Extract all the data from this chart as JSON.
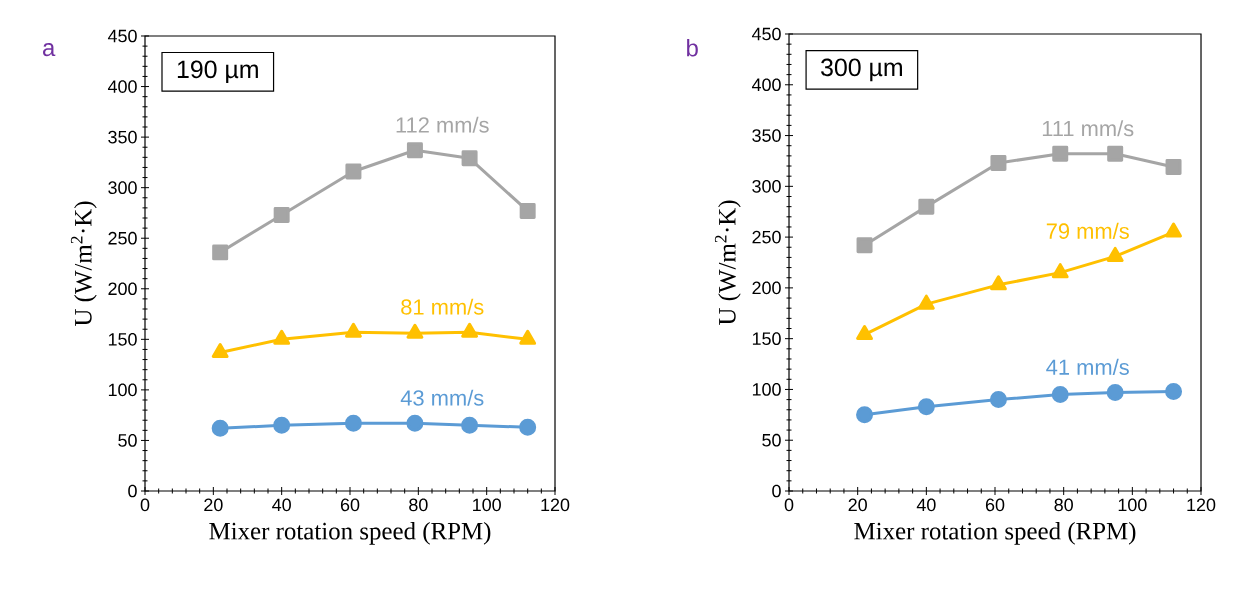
{
  "chart_data": [
    {
      "type": "line",
      "xlabel": "Mixer rotation speed (RPM)",
      "ylabel": "U  (W/m$^{2}$·K)",
      "annotations": [
        "a",
        "190 µm"
      ],
      "x": [
        22,
        40,
        61,
        79,
        95,
        112
      ],
      "xlim": [
        0,
        120
      ],
      "xticks": [
        0,
        20,
        40,
        60,
        80,
        100,
        120
      ],
      "ylim": [
        0,
        450
      ],
      "yticks": [
        0,
        50,
        100,
        150,
        200,
        250,
        300,
        350,
        400,
        450
      ],
      "grid": false,
      "line_style": "solid",
      "series": [
        {
          "name": "112 mm/s",
          "color": "#a5a5a5",
          "marker": "square",
          "values": [
            236,
            273,
            316,
            337,
            329,
            277
          ]
        },
        {
          "name": "81 mm/s",
          "color": "#ffc000",
          "marker": "triangle",
          "values": [
            137,
            150,
            157,
            156,
            157,
            150
          ]
        },
        {
          "name": "43 mm/s",
          "color": "#5b9bd5",
          "marker": "circle",
          "values": [
            62,
            65,
            67,
            67,
            65,
            63
          ]
        }
      ]
    },
    {
      "type": "line",
      "xlabel": "Mixer rotation speed (RPM)",
      "ylabel": "U  (W/m$^{2}$·K)",
      "annotations": [
        "b",
        "300 µm"
      ],
      "x": [
        22,
        40,
        61,
        79,
        95,
        112
      ],
      "xlim": [
        0,
        120
      ],
      "xticks": [
        0,
        20,
        40,
        60,
        80,
        100,
        120
      ],
      "ylim": [
        0,
        450
      ],
      "yticks": [
        0,
        50,
        100,
        150,
        200,
        250,
        300,
        350,
        400,
        450
      ],
      "grid": false,
      "line_style": "solid",
      "series": [
        {
          "name": "111 mm/s",
          "color": "#a5a5a5",
          "marker": "square",
          "values": [
            242,
            280,
            323,
            332,
            332,
            319
          ]
        },
        {
          "name": "79 mm/s",
          "color": "#ffc000",
          "marker": "triangle",
          "values": [
            154,
            184,
            203,
            215,
            231,
            255
          ]
        },
        {
          "name": "41 mm/s",
          "color": "#5b9bd5",
          "marker": "circle",
          "values": [
            75,
            83,
            90,
            95,
            97,
            98
          ]
        }
      ]
    }
  ]
}
